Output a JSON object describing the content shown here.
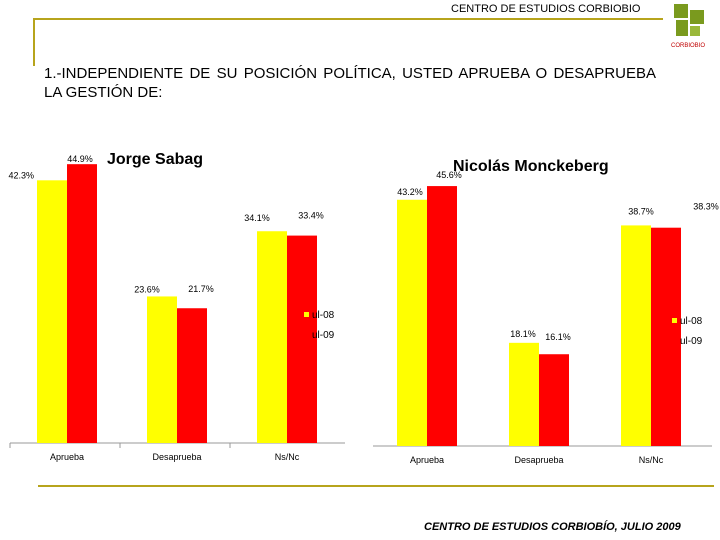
{
  "header": {
    "org_title": "CENTRO DE ESTUDIOS CORBIOBIO",
    "logo_caption": "CORBIOBIO"
  },
  "question": "1.-INDEPENDIENTE DE SU POSICIÓN POLÍTICA, USTED APRUEBA O DESAPRUEBA LA GESTIÓN DE:",
  "footer": "CENTRO DE ESTUDIOS CORBIOBÍO, JULIO 2009",
  "colors": {
    "series1": "#ffff00",
    "series2": "#ff0000",
    "accent": "#b7a41c"
  },
  "chart_data": [
    {
      "type": "bar",
      "title": "Jorge Sabag",
      "categories": [
        "Aprueba",
        "Desaprueba",
        "Ns/Nc"
      ],
      "series": [
        {
          "name": "ul-08",
          "values": [
            42.3,
            23.6,
            34.1
          ],
          "labels": [
            "42.3%",
            "23.6%",
            "34.1%"
          ]
        },
        {
          "name": "ul-09",
          "values": [
            44.9,
            21.7,
            33.4
          ],
          "labels": [
            "44.9%",
            "21.7%",
            "33.4%"
          ]
        }
      ],
      "legend": [
        "ul-08",
        "ul-09"
      ],
      "ylim": [
        0,
        50
      ]
    },
    {
      "type": "bar",
      "title": "Nicolás Monckeberg",
      "categories": [
        "Aprueba",
        "Desaprueba",
        "Ns/Nc"
      ],
      "series": [
        {
          "name": "ul-08",
          "values": [
            43.2,
            18.1,
            38.7
          ],
          "labels": [
            "43.2%",
            "18.1%",
            "38.7%"
          ]
        },
        {
          "name": "ul-09",
          "values": [
            45.6,
            16.1,
            38.3
          ],
          "labels": [
            "45.6%",
            "16.1%",
            "38.3%"
          ]
        }
      ],
      "legend": [
        "ul-08",
        "ul-09"
      ],
      "ylim": [
        0,
        50
      ]
    }
  ]
}
